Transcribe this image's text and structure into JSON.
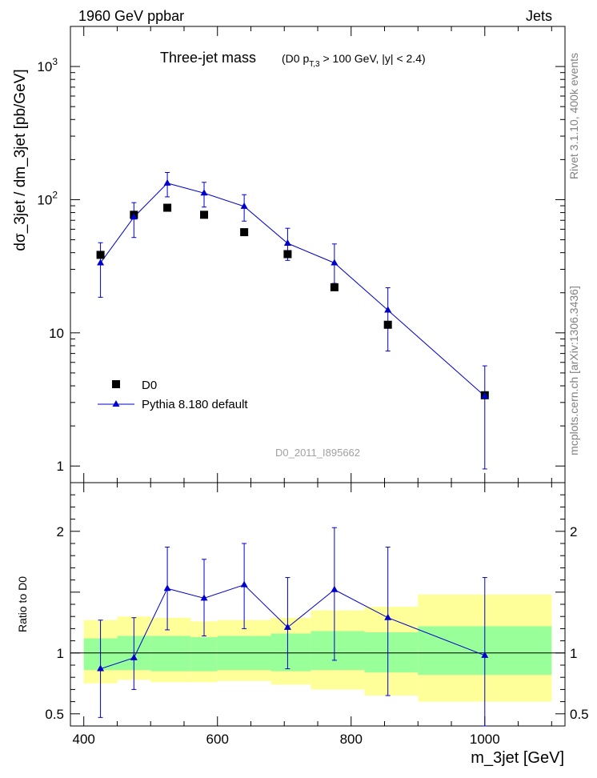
{
  "header": {
    "left": "1960 GeV ppbar",
    "right": "Jets"
  },
  "side_labels": {
    "rivet": "Rivet 3.1.10,  400k events",
    "mcplots": "mcplots.cern.ch [arXiv:1306.3436]"
  },
  "chart_data": {
    "type": "scatter",
    "title": "Three-jet mass",
    "title_cut_prefix": "(D0 p",
    "title_cut_sub": "T,3",
    "title_cut_suffix": " > 100 GeV, |y| < 2.4)",
    "analysis_id": "D0_2011_I895662",
    "xlabel": "m_3jet [GeV]",
    "ylabel": "dσ_3jet / dm_3jet [pb/GeV]",
    "ratio_ylabel": "Ratio to D0",
    "xlim": [
      380,
      1120
    ],
    "ylim": [
      0.75,
      2000
    ],
    "ratio_ylim": [
      0.4,
      2.4
    ],
    "yscale": "log",
    "x_ticks": [
      {
        "value": 400,
        "label": "400"
      },
      {
        "value": 600,
        "label": "600"
      },
      {
        "value": 800,
        "label": "800"
      },
      {
        "value": 1000,
        "label": "1000"
      }
    ],
    "y_ticks": [
      {
        "value": 1,
        "label": "1"
      },
      {
        "value": 10,
        "label": "10"
      },
      {
        "value": 100,
        "label": "10",
        "sup": "2"
      },
      {
        "value": 1000,
        "label": "10",
        "sup": "3"
      }
    ],
    "ratio_ticks": [
      {
        "value": 0.5,
        "label": "0.5"
      },
      {
        "value": 1,
        "label": "1"
      },
      {
        "value": 2,
        "label": "2"
      }
    ],
    "bins": [
      {
        "lo": 400,
        "hi": 450
      },
      {
        "lo": 450,
        "hi": 500
      },
      {
        "lo": 500,
        "hi": 560
      },
      {
        "lo": 560,
        "hi": 600
      },
      {
        "lo": 600,
        "hi": 680
      },
      {
        "lo": 680,
        "hi": 740
      },
      {
        "lo": 740,
        "hi": 820
      },
      {
        "lo": 820,
        "hi": 900
      },
      {
        "lo": 900,
        "hi": 1100
      }
    ],
    "series": [
      {
        "name": "D0",
        "style": "data",
        "color": "#000000",
        "x": [
          425,
          475,
          525,
          580,
          640,
          705,
          775,
          855,
          1000
        ],
        "y": [
          38.5,
          77,
          87,
          77,
          57,
          39,
          22,
          11.5,
          3.4
        ]
      },
      {
        "name": "Pythia 8.180 default",
        "style": "mc",
        "color": "#0000cc",
        "x": [
          425,
          475,
          525,
          580,
          640,
          705,
          775,
          855,
          1000
        ],
        "y": [
          33.5,
          74,
          133,
          112,
          89,
          47,
          33.5,
          14.8,
          3.35
        ],
        "yerr_lo": [
          15,
          22,
          28,
          24,
          20,
          12,
          10,
          7.5,
          2.4
        ],
        "yerr_hi": [
          14,
          21,
          27,
          23,
          20,
          14,
          13,
          7,
          2.3
        ]
      }
    ],
    "ratio": {
      "x": [
        425,
        475,
        525,
        580,
        640,
        705,
        775,
        855,
        1000
      ],
      "y": [
        0.87,
        0.96,
        1.53,
        1.45,
        1.56,
        1.21,
        1.52,
        1.29,
        0.98
      ],
      "err_lo": [
        0.4,
        0.26,
        0.34,
        0.31,
        0.36,
        0.34,
        0.58,
        0.64,
        0.58
      ],
      "err_hi": [
        0.4,
        0.33,
        0.34,
        0.32,
        0.34,
        0.41,
        0.51,
        0.58,
        0.64
      ],
      "band_inner": [
        [
          0.86,
          1.12
        ],
        [
          0.86,
          1.14
        ],
        [
          0.85,
          1.14
        ],
        [
          0.85,
          1.13
        ],
        [
          0.86,
          1.14
        ],
        [
          0.85,
          1.16
        ],
        [
          0.86,
          1.18
        ],
        [
          0.84,
          1.17
        ],
        [
          0.82,
          1.22
        ]
      ],
      "band_outer": [
        [
          0.75,
          1.27
        ],
        [
          0.78,
          1.3
        ],
        [
          0.76,
          1.29
        ],
        [
          0.76,
          1.26
        ],
        [
          0.77,
          1.27
        ],
        [
          0.74,
          1.29
        ],
        [
          0.7,
          1.35
        ],
        [
          0.65,
          1.38
        ],
        [
          0.6,
          1.48
        ]
      ],
      "colors": {
        "inner": "#99ff99",
        "outer": "#ffff99"
      }
    }
  }
}
